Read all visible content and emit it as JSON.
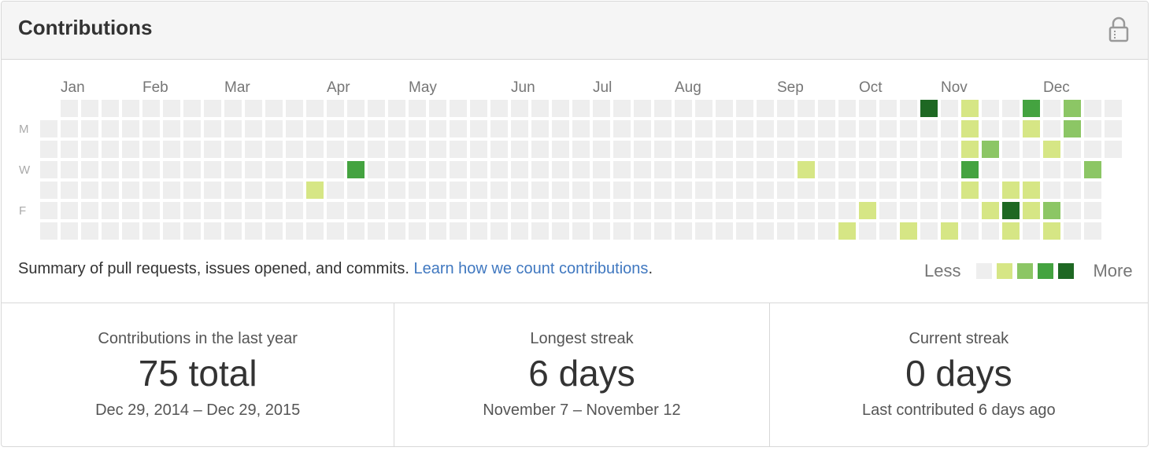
{
  "header": {
    "title": "Contributions"
  },
  "calendar": {
    "months": [
      "Jan",
      "Feb",
      "Mar",
      "Apr",
      "May",
      "Jun",
      "Jul",
      "Aug",
      "Sep",
      "Oct",
      "Nov",
      "Dec"
    ],
    "days": [
      null,
      "M",
      null,
      "W",
      null,
      "F",
      null
    ],
    "colors": [
      "#eeeeee",
      "#d6e685",
      "#8cc665",
      "#44a340",
      "#1e6823"
    ],
    "weeks": [
      [
        null,
        0,
        0,
        0,
        0,
        0,
        0
      ],
      [
        0,
        0,
        0,
        0,
        0,
        0,
        0
      ],
      [
        0,
        0,
        0,
        0,
        0,
        0,
        0
      ],
      [
        0,
        0,
        0,
        0,
        0,
        0,
        0
      ],
      [
        0,
        0,
        0,
        0,
        0,
        0,
        0
      ],
      [
        0,
        0,
        0,
        0,
        0,
        0,
        0
      ],
      [
        0,
        0,
        0,
        0,
        0,
        0,
        0
      ],
      [
        0,
        0,
        0,
        0,
        0,
        0,
        0
      ],
      [
        0,
        0,
        0,
        0,
        0,
        0,
        0
      ],
      [
        0,
        0,
        0,
        0,
        0,
        0,
        0
      ],
      [
        0,
        0,
        0,
        0,
        0,
        0,
        0
      ],
      [
        0,
        0,
        0,
        0,
        0,
        0,
        0
      ],
      [
        0,
        0,
        0,
        0,
        0,
        0,
        0
      ],
      [
        0,
        0,
        0,
        0,
        1,
        0,
        0
      ],
      [
        0,
        0,
        0,
        0,
        0,
        0,
        0
      ],
      [
        0,
        0,
        0,
        3,
        0,
        0,
        0
      ],
      [
        0,
        0,
        0,
        0,
        0,
        0,
        0
      ],
      [
        0,
        0,
        0,
        0,
        0,
        0,
        0
      ],
      [
        0,
        0,
        0,
        0,
        0,
        0,
        0
      ],
      [
        0,
        0,
        0,
        0,
        0,
        0,
        0
      ],
      [
        0,
        0,
        0,
        0,
        0,
        0,
        0
      ],
      [
        0,
        0,
        0,
        0,
        0,
        0,
        0
      ],
      [
        0,
        0,
        0,
        0,
        0,
        0,
        0
      ],
      [
        0,
        0,
        0,
        0,
        0,
        0,
        0
      ],
      [
        0,
        0,
        0,
        0,
        0,
        0,
        0
      ],
      [
        0,
        0,
        0,
        0,
        0,
        0,
        0
      ],
      [
        0,
        0,
        0,
        0,
        0,
        0,
        0
      ],
      [
        0,
        0,
        0,
        0,
        0,
        0,
        0
      ],
      [
        0,
        0,
        0,
        0,
        0,
        0,
        0
      ],
      [
        0,
        0,
        0,
        0,
        0,
        0,
        0
      ],
      [
        0,
        0,
        0,
        0,
        0,
        0,
        0
      ],
      [
        0,
        0,
        0,
        0,
        0,
        0,
        0
      ],
      [
        0,
        0,
        0,
        0,
        0,
        0,
        0
      ],
      [
        0,
        0,
        0,
        0,
        0,
        0,
        0
      ],
      [
        0,
        0,
        0,
        0,
        0,
        0,
        0
      ],
      [
        0,
        0,
        0,
        0,
        0,
        0,
        0
      ],
      [
        0,
        0,
        0,
        0,
        0,
        0,
        0
      ],
      [
        0,
        0,
        0,
        1,
        0,
        0,
        0
      ],
      [
        0,
        0,
        0,
        0,
        0,
        0,
        0
      ],
      [
        0,
        0,
        0,
        0,
        0,
        0,
        1
      ],
      [
        0,
        0,
        0,
        0,
        0,
        1,
        0
      ],
      [
        0,
        0,
        0,
        0,
        0,
        0,
        0
      ],
      [
        0,
        0,
        0,
        0,
        0,
        0,
        1
      ],
      [
        4,
        0,
        0,
        0,
        0,
        0,
        0
      ],
      [
        0,
        0,
        0,
        0,
        0,
        0,
        1
      ],
      [
        1,
        1,
        1,
        3,
        1,
        0,
        0
      ],
      [
        0,
        0,
        2,
        0,
        0,
        1,
        0
      ],
      [
        0,
        0,
        0,
        0,
        1,
        4,
        1
      ],
      [
        3,
        1,
        0,
        0,
        1,
        1,
        0
      ],
      [
        0,
        0,
        1,
        0,
        0,
        2,
        1
      ],
      [
        2,
        2,
        0,
        0,
        0,
        0,
        0
      ],
      [
        0,
        0,
        0,
        2,
        0,
        0,
        0
      ],
      [
        0,
        0,
        0,
        null,
        null,
        null,
        null
      ]
    ]
  },
  "summary": {
    "text": "Summary of pull requests, issues opened, and commits.",
    "link": "Learn how we count contributions",
    "end": "."
  },
  "legend": {
    "less": "Less",
    "more": "More"
  },
  "stats": [
    {
      "label": "Contributions in the last year",
      "value": "75 total",
      "range": "Dec 29, 2014 – Dec 29, 2015"
    },
    {
      "label": "Longest streak",
      "value": "6 days",
      "range": "November 7 – November 12"
    },
    {
      "label": "Current streak",
      "value": "0 days",
      "range": "Last contributed 6 days ago"
    }
  ]
}
